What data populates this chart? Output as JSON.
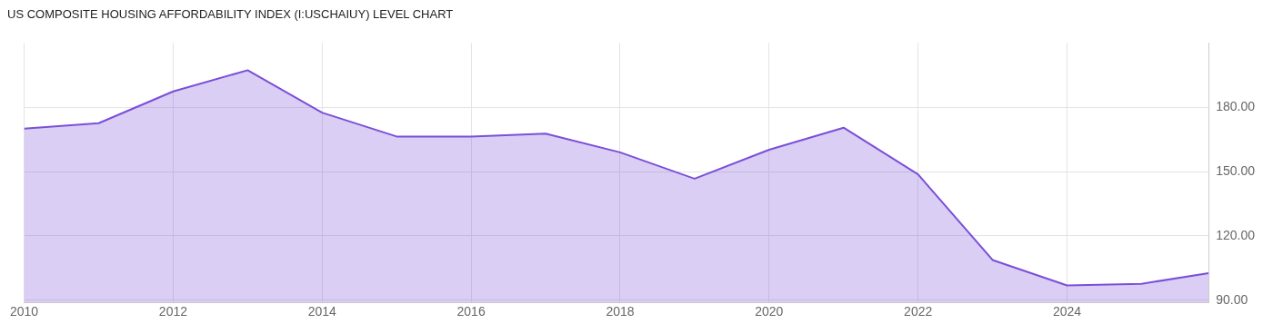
{
  "chart_data": {
    "type": "area",
    "title": "US COMPOSITE HOUSING AFFORDABILITY INDEX (I:USCHAIUY) LEVEL CHART",
    "x": [
      2010,
      2011,
      2012,
      2013,
      2014,
      2015,
      2016,
      2017,
      2018,
      2019,
      2020,
      2021,
      2022,
      2023,
      2024,
      2025,
      2025.9
    ],
    "series": [
      {
        "color": "#7b4fd8",
        "values": [
          170.1,
          172.6,
          187.4,
          197.3,
          177.5,
          166.4,
          166.4,
          167.7,
          159.0,
          146.7,
          160.2,
          170.5,
          148.7,
          108.8,
          96.9,
          97.7,
          102.6
        ]
      }
    ],
    "xlim": [
      2010,
      2025.9
    ],
    "xticks": [
      2010,
      2012,
      2014,
      2016,
      2018,
      2020,
      2022,
      2024
    ],
    "ylim": [
      89,
      210
    ],
    "yticks": [
      {
        "value": 90,
        "label": "90.00"
      },
      {
        "value": 120,
        "label": "120.00"
      },
      {
        "value": 150,
        "label": "150.00"
      },
      {
        "value": 180,
        "label": "180.00"
      }
    ],
    "grid": true,
    "legend": false
  }
}
